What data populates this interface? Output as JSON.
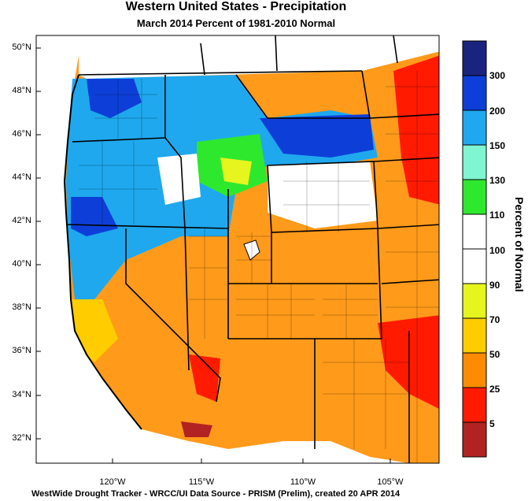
{
  "title": "Western United States - Precipitation",
  "subtitle": "March 2014  Percent of 1981-2010 Normal",
  "footer": "WestWide Drought Tracker - WRCC/UI  Data Source - PRISM (Prelim), created 20 APR 2014",
  "latitude_labels": [
    "50°N",
    "48°N",
    "46°N",
    "44°N",
    "42°N",
    "40°N",
    "38°N",
    "36°N",
    "34°N",
    "32°N"
  ],
  "longitude_labels": [
    "120°W",
    "115°W",
    "110°W",
    "105°W"
  ],
  "legend": {
    "title": "Percent of Normal",
    "labels": [
      "300",
      "200",
      "150",
      "130",
      "110",
      "100",
      "90",
      "70",
      "50",
      "25",
      "5"
    ],
    "colors": [
      "#1a237e",
      "#0d3fd8",
      "#1fa8ee",
      "#7ff5d2",
      "#2ee82e",
      "#ffffff",
      "#ffffff",
      "#e6f51e",
      "#ffcc00",
      "#ff8c00",
      "#ff1a00",
      "#b22222"
    ]
  },
  "colors": {
    "wet_blue": "#1fa8ee",
    "very_wet": "#0d3fd8",
    "dry_orange": "#ff8c00",
    "very_dry_red": "#ff1a00"
  }
}
